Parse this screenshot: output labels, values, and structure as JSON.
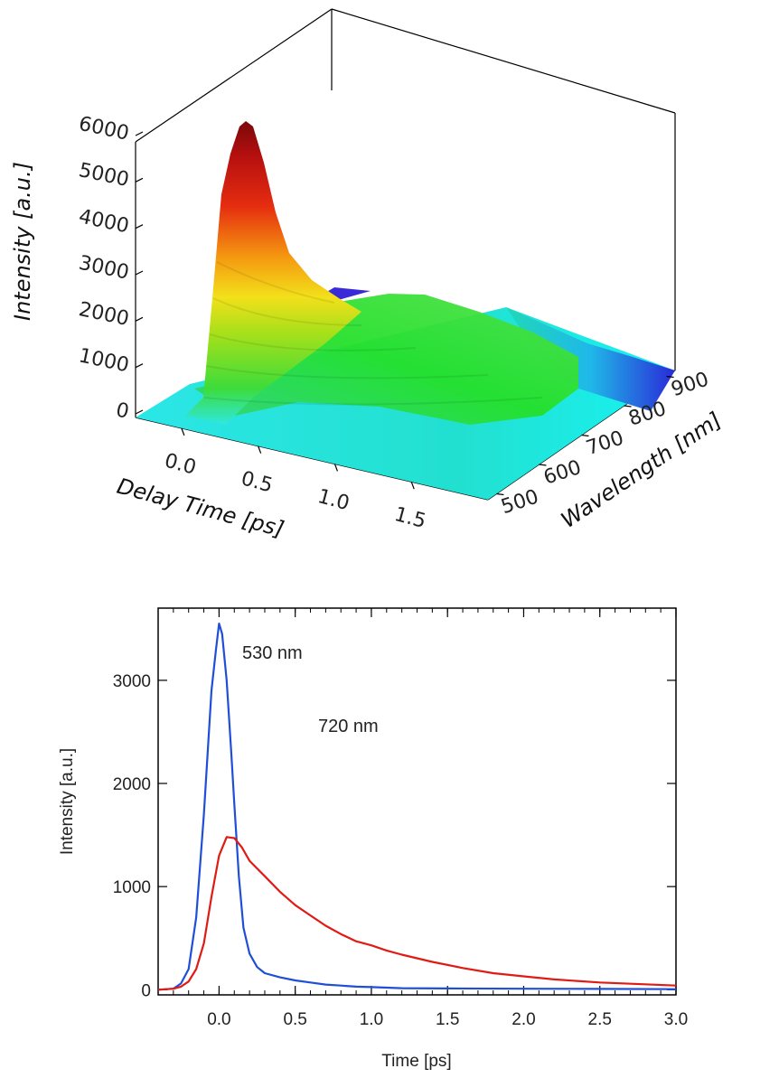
{
  "chart_data": [
    {
      "type": "surface",
      "xlabel": "Delay Time [ps]",
      "ylabel": "Wavelength [nm]",
      "zlabel": "Intensity [a.u.]",
      "x_ticks": [
        "0.0",
        "0.5",
        "1.0",
        "1.5"
      ],
      "y_ticks": [
        "500",
        "600",
        "700",
        "800",
        "900"
      ],
      "z_ticks": [
        "0",
        "1000",
        "2000",
        "3000",
        "4000",
        "5000",
        "6000"
      ],
      "xlim": [
        -0.3,
        2.0
      ],
      "ylim": [
        480,
        920
      ],
      "zlim": [
        0,
        6000
      ],
      "colormap": "rainbow",
      "peak": {
        "x": 0.25,
        "y": 500,
        "z": 5500
      }
    },
    {
      "type": "line",
      "xlabel": "Time [ps]",
      "ylabel": "Intensity [a.u.]",
      "xlim": [
        -0.4,
        3.0
      ],
      "ylim": [
        -50,
        3700
      ],
      "x_ticks": [
        "0.0",
        "0.5",
        "1.0",
        "1.5",
        "2.0",
        "2.5",
        "3.0"
      ],
      "y_ticks": [
        "0",
        "1000",
        "2000",
        "3000"
      ],
      "series": [
        {
          "name": "530 nm",
          "color": "#1f4fd6",
          "x": [
            -0.4,
            -0.3,
            -0.25,
            -0.2,
            -0.15,
            -0.1,
            -0.05,
            -0.02,
            0.0,
            0.02,
            0.05,
            0.08,
            0.1,
            0.13,
            0.16,
            0.2,
            0.25,
            0.3,
            0.4,
            0.5,
            0.6,
            0.7,
            0.8,
            0.9,
            1.0,
            1.1,
            1.2,
            1.5,
            2.0,
            2.5,
            3.0
          ],
          "y": [
            0,
            10,
            60,
            200,
            700,
            1700,
            2900,
            3300,
            3550,
            3450,
            3000,
            2300,
            1800,
            1100,
            600,
            350,
            220,
            160,
            120,
            90,
            70,
            50,
            40,
            30,
            25,
            20,
            15,
            12,
            10,
            8,
            5
          ]
        },
        {
          "name": "720 nm",
          "color": "#e01b14",
          "x": [
            -0.4,
            -0.3,
            -0.25,
            -0.2,
            -0.15,
            -0.1,
            -0.05,
            0.0,
            0.05,
            0.1,
            0.15,
            0.2,
            0.3,
            0.4,
            0.5,
            0.6,
            0.7,
            0.8,
            0.9,
            1.0,
            1.1,
            1.2,
            1.4,
            1.6,
            1.8,
            2.0,
            2.2,
            2.5,
            3.0
          ],
          "y": [
            0,
            10,
            30,
            80,
            200,
            450,
            900,
            1300,
            1480,
            1470,
            1380,
            1250,
            1100,
            950,
            820,
            720,
            620,
            540,
            470,
            430,
            380,
            340,
            270,
            210,
            160,
            130,
            100,
            70,
            40
          ]
        }
      ],
      "annotations": [
        "530 nm",
        "720 nm"
      ]
    }
  ]
}
